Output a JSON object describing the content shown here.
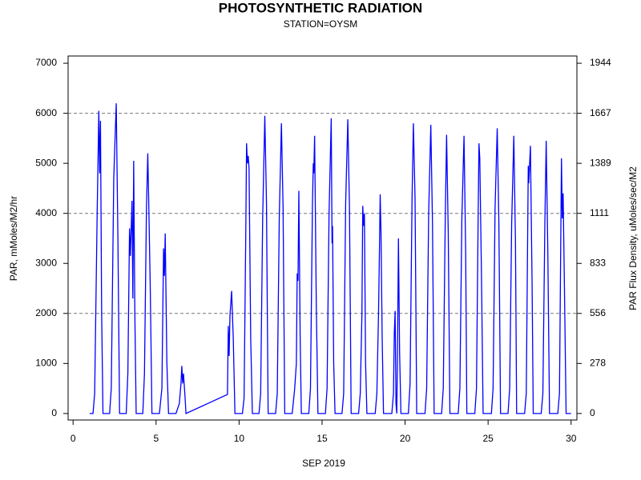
{
  "chart_data": {
    "type": "line",
    "title": "PHOTOSYNTHETIC RADIATION",
    "subtitle": "STATION=OYSM",
    "xlabel": "SEP 2019",
    "ylabel": "PAR, mMoles/M2/hr",
    "y2label": "PAR Flux Density, uMoles/sec/M2",
    "color": "#0000ff",
    "xlim": [
      -0.3,
      30.35
    ],
    "xticks": [
      0,
      5,
      10,
      15,
      20,
      25,
      30
    ],
    "ylim": [
      -130,
      7145
    ],
    "yticks": [
      0,
      1000,
      2000,
      3000,
      4000,
      5000,
      6000,
      7000
    ],
    "y2lim": [
      -36.11,
      1984.72
    ],
    "y2ticks": [
      0,
      {
        "value": 277.78,
        "label": "278"
      },
      {
        "value": 555.56,
        "label": "556"
      },
      {
        "value": 833.33,
        "label": "833"
      },
      {
        "value": 1111.11,
        "label": "1111"
      },
      {
        "value": 1388.89,
        "label": "1389"
      },
      {
        "value": 1666.67,
        "label": "1667"
      },
      {
        "value": 1944.44,
        "label": "1944"
      }
    ],
    "reflines": [
      2000,
      4000,
      6000
    ],
    "x": [
      1.0,
      1.2,
      1.3,
      1.45,
      1.55,
      1.6,
      1.65,
      1.72,
      1.8,
      2.2,
      2.3,
      2.45,
      2.6,
      2.7,
      2.8,
      3.2,
      3.3,
      3.4,
      3.45,
      3.55,
      3.6,
      3.65,
      3.72,
      3.8,
      4.2,
      4.3,
      4.42,
      4.5,
      4.55,
      4.65,
      4.75,
      5.2,
      5.35,
      5.45,
      5.5,
      5.55,
      5.65,
      5.75,
      6.2,
      6.4,
      6.5,
      6.55,
      6.6,
      6.65,
      6.75,
      6.8,
      9.3,
      9.35,
      9.4,
      9.45,
      9.55,
      9.65,
      9.75,
      10.2,
      10.3,
      10.4,
      10.45,
      10.5,
      10.55,
      10.6,
      10.7,
      10.8,
      11.2,
      11.3,
      11.42,
      11.55,
      11.65,
      11.75,
      12.2,
      12.3,
      12.42,
      12.55,
      12.65,
      12.75,
      13.2,
      13.35,
      13.45,
      13.5,
      13.55,
      13.6,
      13.68,
      13.75,
      14.2,
      14.3,
      14.42,
      14.47,
      14.5,
      14.55,
      14.65,
      14.75,
      15.2,
      15.3,
      15.42,
      15.55,
      15.6,
      15.63,
      15.7,
      15.78,
      16.2,
      16.3,
      16.42,
      16.55,
      16.65,
      16.75,
      17.2,
      17.3,
      17.4,
      17.45,
      17.5,
      17.55,
      17.62,
      17.7,
      18.2,
      18.3,
      18.4,
      18.45,
      18.5,
      18.55,
      18.62,
      18.7,
      19.2,
      19.3,
      19.35,
      19.4,
      19.45,
      19.5,
      19.55,
      19.6,
      19.67,
      19.75,
      20.2,
      20.3,
      20.42,
      20.5,
      20.6,
      20.7,
      21.2,
      21.3,
      21.42,
      21.55,
      21.65,
      21.75,
      22.2,
      22.3,
      22.42,
      22.5,
      22.6,
      22.7,
      23.2,
      23.3,
      23.42,
      23.55,
      23.65,
      23.72,
      24.2,
      24.3,
      24.4,
      24.45,
      24.5,
      24.6,
      24.7,
      25.2,
      25.3,
      25.42,
      25.55,
      25.65,
      25.75,
      26.2,
      26.3,
      26.42,
      26.55,
      26.65,
      26.72,
      27.2,
      27.3,
      27.42,
      27.45,
      27.55,
      27.65,
      27.72,
      28.2,
      28.3,
      28.42,
      28.5,
      28.6,
      28.7,
      29.2,
      29.3,
      29.42,
      29.47,
      29.52,
      29.6,
      29.7,
      30.0
    ],
    "values": [
      0,
      0,
      400,
      4000,
      6050,
      4800,
      5850,
      2000,
      0,
      0,
      500,
      4700,
      6200,
      3500,
      0,
      0,
      800,
      3700,
      3150,
      4250,
      2300,
      5050,
      2000,
      0,
      0,
      800,
      4100,
      5200,
      4350,
      2500,
      0,
      0,
      500,
      3300,
      2750,
      3600,
      1000,
      0,
      0,
      200,
      600,
      950,
      600,
      800,
      300,
      0,
      380,
      1750,
      1150,
      1950,
      2450,
      1500,
      0,
      0,
      300,
      3500,
      5400,
      5000,
      5150,
      4900,
      1500,
      0,
      0,
      400,
      3900,
      5950,
      4200,
      0,
      0,
      400,
      3900,
      5800,
      4100,
      0,
      0,
      500,
      1000,
      2800,
      2650,
      4450,
      1500,
      0,
      0,
      500,
      4200,
      5000,
      4800,
      5550,
      2200,
      0,
      0,
      500,
      4000,
      5900,
      3400,
      3750,
      1000,
      0,
      0,
      400,
      4200,
      5880,
      4100,
      0,
      0,
      400,
      2000,
      4150,
      3750,
      4000,
      1000,
      0,
      0,
      400,
      2000,
      3150,
      4380,
      3600,
      1500,
      0,
      0,
      400,
      1600,
      2050,
      200,
      0,
      1500,
      3500,
      1200,
      0,
      0,
      600,
      4300,
      5800,
      4300,
      0,
      0,
      500,
      4000,
      5770,
      3800,
      0,
      0,
      500,
      3900,
      5570,
      3600,
      0,
      0,
      500,
      3900,
      5550,
      3200,
      0,
      0,
      500,
      3900,
      5400,
      5100,
      2800,
      0,
      0,
      500,
      4100,
      5700,
      3800,
      0,
      0,
      500,
      3800,
      5550,
      3400,
      0,
      0,
      400,
      4950,
      4600,
      5350,
      2600,
      0,
      0,
      400,
      3800,
      5450,
      3200,
      0,
      0,
      400,
      5100,
      3900,
      4400,
      2500,
      0,
      0
    ]
  }
}
